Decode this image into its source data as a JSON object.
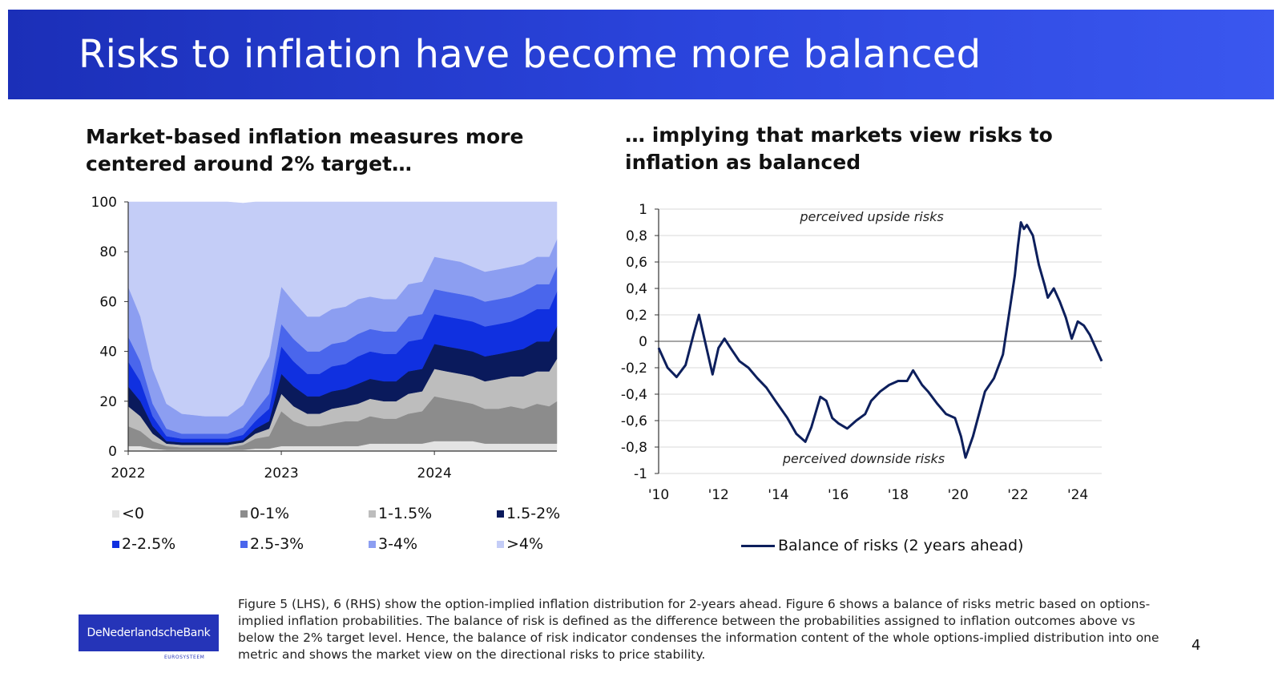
{
  "slide": {
    "title": "Risks to inflation have become more balanced",
    "left_heading": "Market-based inflation measures more centered around 2% target…",
    "right_heading": "… implying that markets view risks to inflation as balanced",
    "footnote": "Figure 5 (LHS), 6 (RHS) show the option-implied inflation distribution for 2-years ahead. Figure 6 shows a balance of risks metric based on options-implied inflation probabilities. The balance of risk is defined as the difference between the probabilities assigned to inflation outcomes above vs below the 2% target level. Hence, the balance of risk indicator condenses the information content of the whole options-implied distribution into one metric and shows the market view on the directional risks to price stability.",
    "logo_text": "DeNederlandscheBank",
    "logo_subtext": "EUROSYSTEEM",
    "page_number": "4"
  },
  "chart_data": [
    {
      "type": "area",
      "stacked": true,
      "ylim": [
        0,
        100
      ],
      "yticks": [
        "0",
        "20",
        "40",
        "60",
        "80",
        "100"
      ],
      "xlim": [
        2022.0,
        2024.8
      ],
      "xtick_labels": [
        "2022",
        "2023",
        "2024"
      ],
      "xtick_values": [
        2022.0,
        2023.0,
        2024.0
      ],
      "x": [
        2022.0,
        2022.08,
        2022.16,
        2022.25,
        2022.35,
        2022.5,
        2022.65,
        2022.75,
        2022.83,
        2022.92,
        2023.0,
        2023.08,
        2023.17,
        2023.25,
        2023.33,
        2023.42,
        2023.5,
        2023.58,
        2023.67,
        2023.75,
        2023.83,
        2023.92,
        2024.0,
        2024.08,
        2024.17,
        2024.25,
        2024.33,
        2024.42,
        2024.5,
        2024.58,
        2024.67,
        2024.75,
        2024.8
      ],
      "series": [
        {
          "name": "<0",
          "color": "#e3e3e3",
          "values": [
            2,
            2,
            1,
            0.5,
            0.5,
            0.5,
            0.5,
            0.5,
            1,
            1,
            2,
            2,
            2,
            2,
            2,
            2,
            2,
            3,
            3,
            3,
            3,
            3,
            4,
            4,
            4,
            4,
            3,
            3,
            3,
            3,
            3,
            3,
            3
          ]
        },
        {
          "name": "0-1%",
          "color": "#8c8c8c",
          "values": [
            8,
            6,
            3,
            1.5,
            1,
            1,
            1,
            2,
            4,
            5,
            14,
            10,
            8,
            8,
            9,
            10,
            10,
            11,
            10,
            10,
            12,
            13,
            18,
            17,
            16,
            15,
            14,
            14,
            15,
            14,
            16,
            15,
            17
          ]
        },
        {
          "name": "1-1.5%",
          "color": "#bdbdbd",
          "values": [
            8,
            6,
            3,
            1,
            1,
            1,
            1,
            1,
            2,
            3,
            7,
            6,
            5,
            5,
            6,
            6,
            7,
            7,
            7,
            7,
            8,
            8,
            11,
            11,
            11,
            11,
            11,
            12,
            12,
            13,
            13,
            14,
            17
          ]
        },
        {
          "name": "1.5-2%",
          "color": "#0a1a5c",
          "values": [
            8,
            6,
            3,
            1,
            1,
            1,
            1,
            1,
            2,
            3,
            8,
            8,
            7,
            7,
            7,
            7,
            8,
            8,
            8,
            8,
            9,
            9,
            10,
            10,
            10,
            10,
            10,
            10,
            10,
            11,
            12,
            12,
            13
          ]
        },
        {
          "name": "2-2.5%",
          "color": "#1030e0",
          "values": [
            10,
            8,
            4,
            2,
            1.5,
            1.5,
            1.5,
            2,
            3,
            5,
            11,
            10,
            9,
            9,
            10,
            10,
            11,
            11,
            11,
            11,
            12,
            12,
            12,
            12,
            12,
            12,
            12,
            12,
            12,
            13,
            13,
            13,
            14
          ]
        },
        {
          "name": "2.5-3%",
          "color": "#4a66ec",
          "values": [
            10,
            8,
            5,
            3,
            2,
            2,
            2,
            3,
            4,
            6,
            9,
            9,
            9,
            9,
            9,
            9,
            9,
            9,
            9,
            9,
            10,
            10,
            10,
            10,
            10,
            10,
            10,
            10,
            10,
            10,
            10,
            10,
            10
          ]
        },
        {
          "name": "3-4%",
          "color": "#8c9ef1",
          "values": [
            20,
            18,
            14,
            10,
            8,
            7,
            7,
            9,
            12,
            15,
            15,
            15,
            14,
            14,
            14,
            14,
            14,
            13,
            13,
            13,
            13,
            13,
            13,
            13,
            13,
            12,
            12,
            12,
            12,
            11,
            11,
            11,
            11
          ]
        },
        {
          "name": ">4%",
          "color": "#c4cdf7",
          "values": [
            34,
            46,
            67,
            81,
            85,
            86,
            86,
            81,
            72,
            62,
            34,
            40,
            46,
            46,
            43,
            42,
            39,
            38,
            39,
            39,
            33,
            32,
            22,
            23,
            24,
            26,
            28,
            27,
            26,
            25,
            22,
            22,
            15
          ]
        }
      ]
    },
    {
      "type": "line",
      "ylim": [
        -1,
        1
      ],
      "yticks": [
        "-1",
        "-0,8",
        "-0,6",
        "-0,4",
        "-0,2",
        "0",
        "0,2",
        "0,4",
        "0,6",
        "0,8",
        "1"
      ],
      "xlim": [
        2010.0,
        2024.8
      ],
      "xtick_labels": [
        "'10",
        "'12",
        "'14",
        "'16",
        "'18",
        "'20",
        "'22",
        "'24"
      ],
      "xtick_values": [
        2010,
        2012,
        2014,
        2016,
        2018,
        2020,
        2022,
        2024
      ],
      "annotations": [
        "perceived upside risks",
        "perceived downside risks"
      ],
      "series": [
        {
          "name": "Balance of risks (2 years ahead)",
          "color": "#0d1f5c",
          "x": [
            2010.0,
            2010.3,
            2010.6,
            2010.9,
            2011.2,
            2011.35,
            2011.5,
            2011.8,
            2012.0,
            2012.2,
            2012.4,
            2012.7,
            2013.0,
            2013.3,
            2013.6,
            2013.9,
            2014.3,
            2014.6,
            2014.9,
            2015.1,
            2015.4,
            2015.6,
            2015.8,
            2016.0,
            2016.3,
            2016.6,
            2016.9,
            2017.1,
            2017.4,
            2017.7,
            2018.0,
            2018.3,
            2018.5,
            2018.8,
            2019.0,
            2019.3,
            2019.6,
            2019.9,
            2020.1,
            2020.25,
            2020.5,
            2020.7,
            2020.9,
            2021.2,
            2021.5,
            2021.7,
            2021.9,
            2022.0,
            2022.1,
            2022.2,
            2022.3,
            2022.5,
            2022.7,
            2022.9,
            2023.0,
            2023.2,
            2023.4,
            2023.6,
            2023.8,
            2024.0,
            2024.2,
            2024.4,
            2024.6,
            2024.8
          ],
          "y": [
            -0.05,
            -0.2,
            -0.27,
            -0.18,
            0.08,
            0.2,
            0.05,
            -0.25,
            -0.05,
            0.02,
            -0.05,
            -0.15,
            -0.2,
            -0.28,
            -0.35,
            -0.45,
            -0.58,
            -0.7,
            -0.76,
            -0.65,
            -0.42,
            -0.45,
            -0.58,
            -0.62,
            -0.66,
            -0.6,
            -0.55,
            -0.45,
            -0.38,
            -0.33,
            -0.3,
            -0.3,
            -0.22,
            -0.33,
            -0.38,
            -0.47,
            -0.55,
            -0.58,
            -0.72,
            -0.88,
            -0.72,
            -0.55,
            -0.38,
            -0.28,
            -0.1,
            0.2,
            0.5,
            0.72,
            0.9,
            0.85,
            0.88,
            0.8,
            0.58,
            0.42,
            0.33,
            0.4,
            0.3,
            0.18,
            0.02,
            0.15,
            0.12,
            0.05,
            -0.05,
            -0.15
          ]
        }
      ]
    }
  ]
}
